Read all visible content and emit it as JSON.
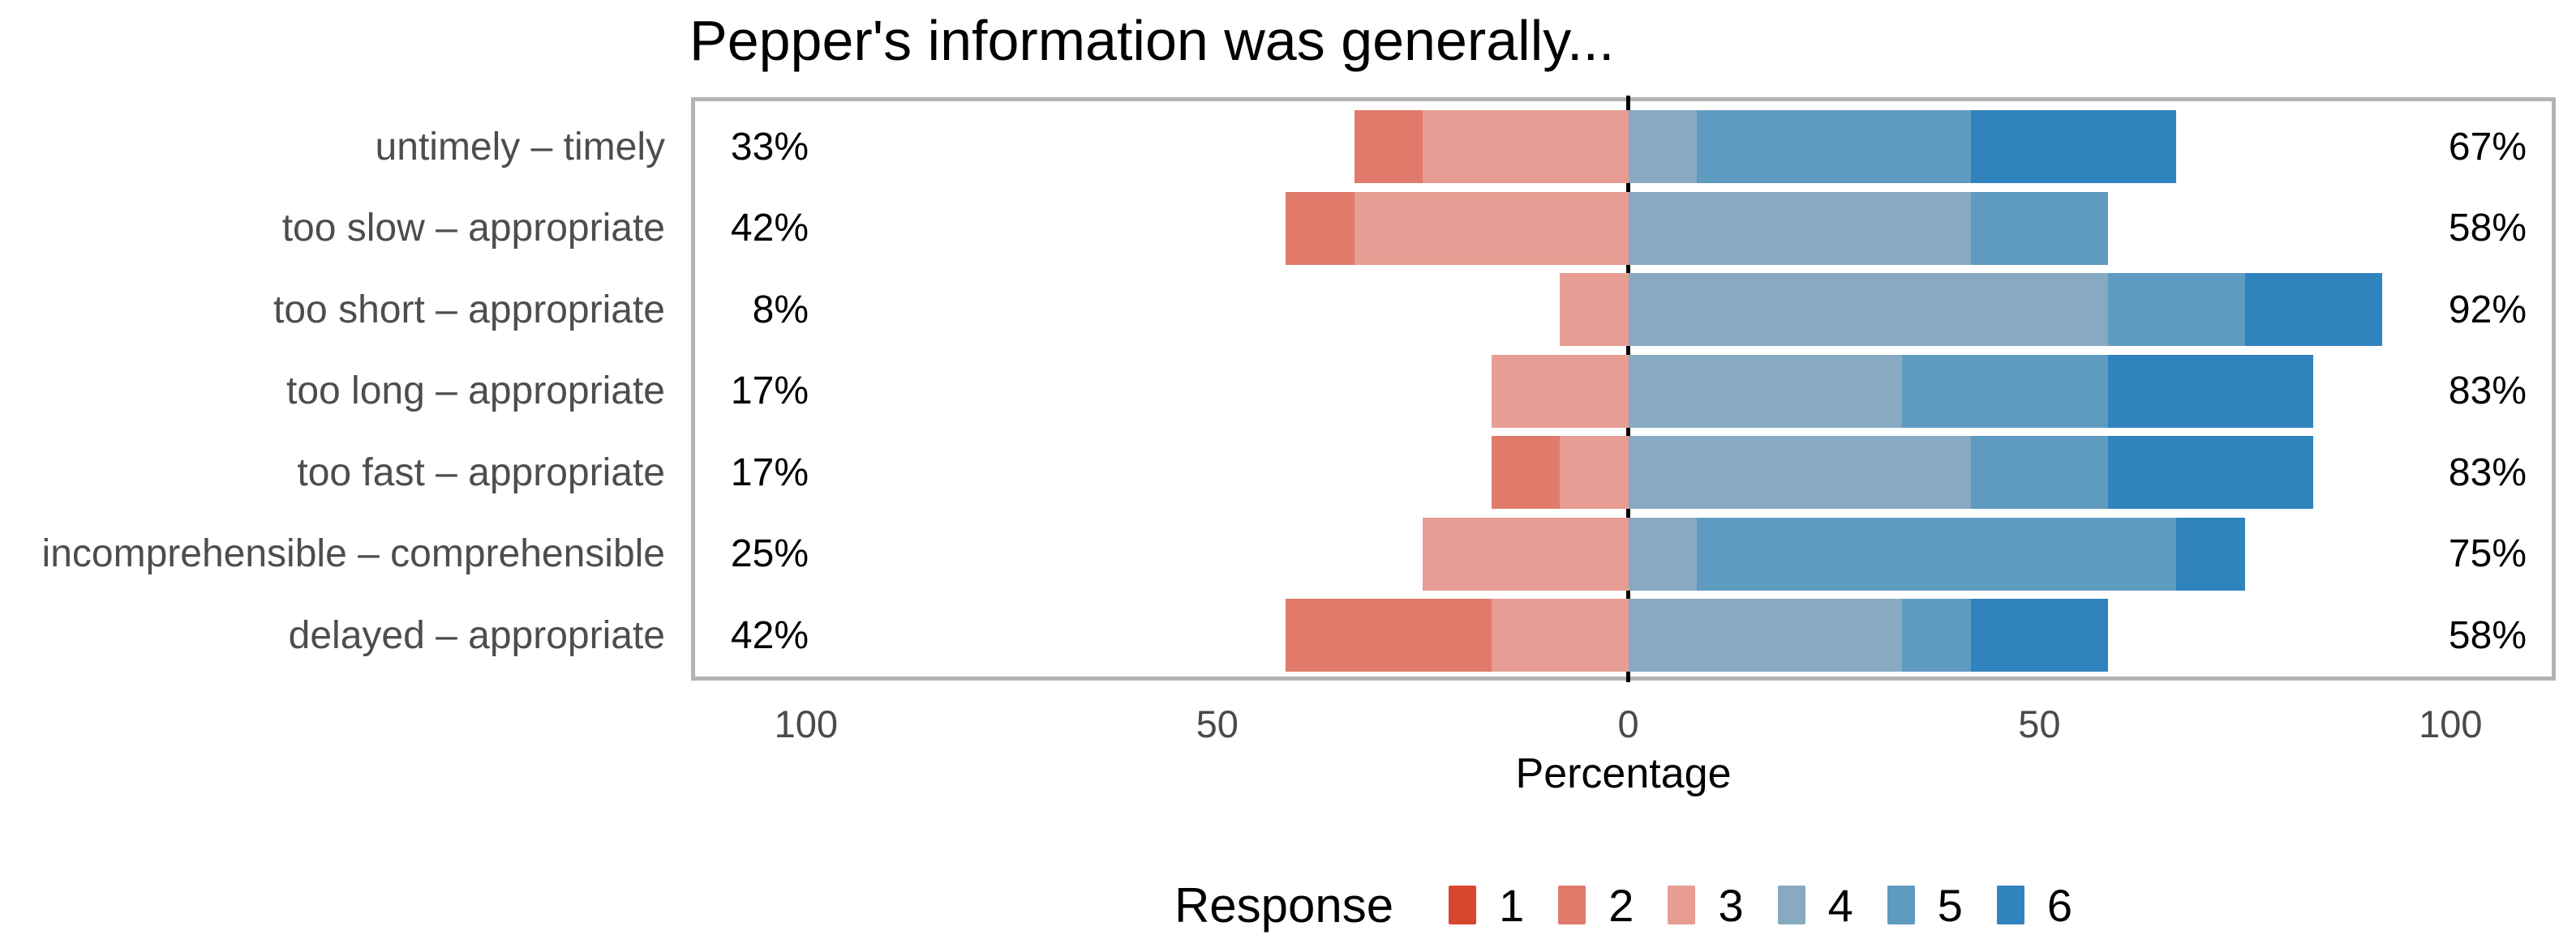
{
  "title": "Pepper's information was generally...",
  "x_axis": {
    "title": "Percentage",
    "ticks": [
      {
        "label": "100",
        "value": -100
      },
      {
        "label": "50",
        "value": -50
      },
      {
        "label": "0",
        "value": 0
      },
      {
        "label": "50",
        "value": 50
      },
      {
        "label": "100",
        "value": 100
      }
    ]
  },
  "legend": {
    "title": "Response",
    "items": [
      {
        "label": "1",
        "color": "#d7472f"
      },
      {
        "label": "2",
        "color": "#e07b6c"
      },
      {
        "label": "3",
        "color": "#e79d93"
      },
      {
        "label": "4",
        "color": "#87aac2"
      },
      {
        "label": "5",
        "color": "#5f9bc1"
      },
      {
        "label": "6",
        "color": "#3183bd"
      }
    ]
  },
  "colors": {
    "panel_border": "#b3b3b3",
    "zero_line": "#000000",
    "category_label": "#4d4d4d",
    "tick_label": "#4a4a4a",
    "total_label": "#000000",
    "background": "#ffffff"
  },
  "chart_data": {
    "type": "bar",
    "variant": "diverging-stacked-likert",
    "title": "Pepper's information was generally...",
    "xlabel": "Percentage",
    "categories": [
      "untimely – timely",
      "too slow – appropriate",
      "too short – appropriate",
      "too long – appropriate",
      "too fast – appropriate",
      "incomprehensible – comprehensible",
      "delayed – appropriate"
    ],
    "series": [
      {
        "name": "1",
        "values": [
          0,
          0,
          0,
          0,
          0,
          0,
          0
        ]
      },
      {
        "name": "2",
        "values": [
          8.33,
          8.33,
          0,
          0,
          8.33,
          0,
          25
        ]
      },
      {
        "name": "3",
        "values": [
          25,
          33.33,
          8.33,
          16.67,
          8.33,
          25,
          16.67
        ]
      },
      {
        "name": "4",
        "values": [
          8.33,
          41.67,
          58.33,
          33.33,
          41.67,
          8.33,
          33.33
        ]
      },
      {
        "name": "5",
        "values": [
          33.33,
          16.67,
          16.67,
          25,
          16.67,
          58.33,
          8.33
        ]
      },
      {
        "name": "6",
        "values": [
          25,
          0,
          16.67,
          25,
          25,
          8.33,
          16.67
        ]
      }
    ],
    "negative_series": [
      "1",
      "2",
      "3"
    ],
    "positive_series": [
      "4",
      "5",
      "6"
    ],
    "left_totals": [
      "33%",
      "42%",
      "8%",
      "17%",
      "17%",
      "25%",
      "42%"
    ],
    "right_totals": [
      "67%",
      "58%",
      "92%",
      "83%",
      "83%",
      "75%",
      "58%"
    ],
    "xlim": [
      -113.5,
      112.3
    ],
    "zero_reference_line": true,
    "grid": false,
    "legend_position": "bottom"
  }
}
